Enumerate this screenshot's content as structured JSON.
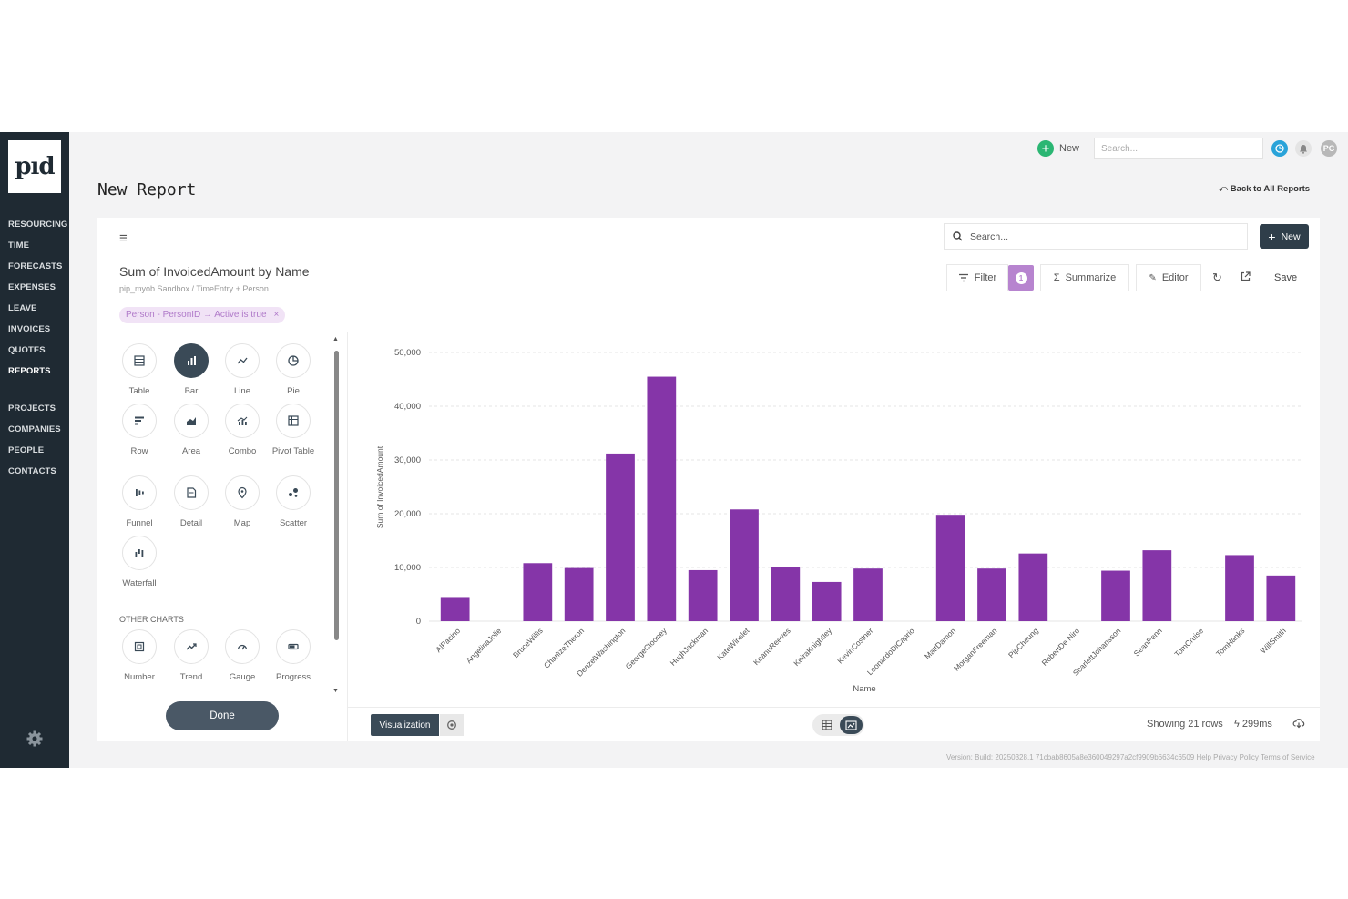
{
  "sidebar": {
    "logo_text": "pıd",
    "items": [
      {
        "label": "RESOURCING"
      },
      {
        "label": "TIME"
      },
      {
        "label": "FORECASTS"
      },
      {
        "label": "EXPENSES"
      },
      {
        "label": "LEAVE"
      },
      {
        "label": "INVOICES"
      },
      {
        "label": "QUOTES"
      },
      {
        "label": "REPORTS",
        "active": true
      },
      {
        "label": "PROJECTS"
      },
      {
        "label": "COMPANIES"
      },
      {
        "label": "PEOPLE"
      },
      {
        "label": "CONTACTS"
      }
    ]
  },
  "topbar": {
    "new_label": "New",
    "search_placeholder": "Search...",
    "avatar_initials": "PC"
  },
  "page": {
    "title": "New Report",
    "back_link": "Back to All Reports"
  },
  "report": {
    "search_placeholder": "Search...",
    "new_label": "New",
    "title": "Sum of InvoicedAmount by Name",
    "breadcrumb": "pip_myob Sandbox  /  TimeEntry + Person",
    "filter_label": "Filter",
    "filter_count": "1",
    "summarize_label": "Summarize",
    "editor_label": "Editor",
    "save_label": "Save",
    "filter_chip": "Person - PersonID → Active is true"
  },
  "chart_types": {
    "main": [
      {
        "label": "Table",
        "icon": "table-icon"
      },
      {
        "label": "Bar",
        "icon": "bar-chart-icon",
        "selected": true
      },
      {
        "label": "Line",
        "icon": "line-chart-icon"
      },
      {
        "label": "Pie",
        "icon": "pie-chart-icon"
      },
      {
        "label": "Row",
        "icon": "row-chart-icon"
      },
      {
        "label": "Area",
        "icon": "area-chart-icon"
      },
      {
        "label": "Combo",
        "icon": "combo-chart-icon"
      },
      {
        "label": "Pivot Table",
        "icon": "pivot-table-icon"
      },
      {
        "label": "Funnel",
        "icon": "funnel-icon"
      },
      {
        "label": "Detail",
        "icon": "detail-icon"
      },
      {
        "label": "Map",
        "icon": "map-pin-icon"
      },
      {
        "label": "Scatter",
        "icon": "scatter-icon"
      },
      {
        "label": "Waterfall",
        "icon": "waterfall-icon"
      }
    ],
    "other_heading": "OTHER CHARTS",
    "other": [
      {
        "label": "Number",
        "icon": "number-icon"
      },
      {
        "label": "Trend",
        "icon": "trend-icon"
      },
      {
        "label": "Gauge",
        "icon": "gauge-icon"
      },
      {
        "label": "Progress",
        "icon": "progress-icon"
      }
    ],
    "done_label": "Done"
  },
  "bottom": {
    "visualization_label": "Visualization",
    "rows_info": "Showing 21 rows",
    "timing": "299ms"
  },
  "footer": "Version: Build: 20250328.1 71cbab8605a8e360049297a2cf9909b6634c6509  Help  Privacy Policy  Terms of Service",
  "colors": {
    "bar": "#8535a8",
    "sidebar": "#1f2a33",
    "accent_green": "#2bb673",
    "filter_purple": "#b784cf"
  },
  "chart_data": {
    "type": "bar",
    "xlabel": "Name",
    "ylabel": "Sum of InvoicedAmount",
    "ylim": [
      0,
      50000
    ],
    "yticks": [
      0,
      10000,
      20000,
      30000,
      40000,
      50000
    ],
    "ytick_labels": [
      "0",
      "10,000",
      "20,000",
      "30,000",
      "40,000",
      "50,000"
    ],
    "grid": true,
    "categories": [
      "AlPacino",
      "AngelinaJolie",
      "BruceWillis",
      "CharlizeTheron",
      "DenzelWashington",
      "GeorgeClooney",
      "HughJackman",
      "KateWinslet",
      "KeanuReeves",
      "KeiraKnightley",
      "KevinCostner",
      "LeonardoDiCaprio",
      "MattDamon",
      "MorganFreeman",
      "PipCheung",
      "RobertDe Niro",
      "ScarlettJohansson",
      "SeanPenn",
      "TomCruise",
      "TomHanks",
      "WillSmith"
    ],
    "values": [
      4500,
      0,
      10800,
      9900,
      31200,
      45500,
      9500,
      20800,
      10000,
      7300,
      9800,
      0,
      19800,
      9800,
      12600,
      0,
      9400,
      13200,
      0,
      12300,
      8500
    ]
  }
}
